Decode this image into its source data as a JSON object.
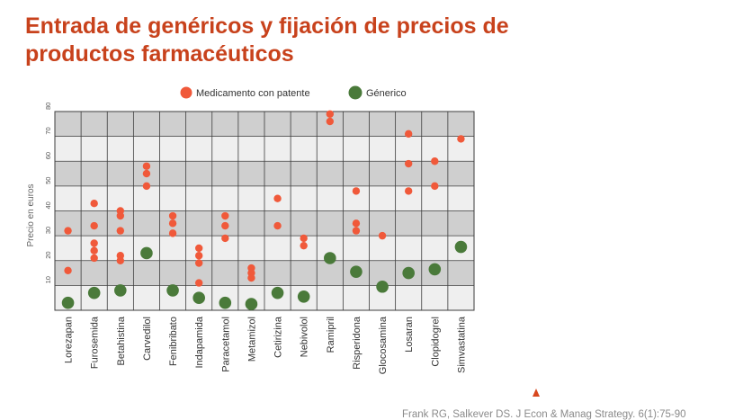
{
  "slide": {
    "title_line1": "Entrada de genéricos y fijación de precios de",
    "title_line2": "productos farmacéuticos",
    "source": "Frank RG, Salkever DS. J Econ & Manag Strategy. 6(1):75-90"
  },
  "colors": {
    "title": "#c8421c",
    "patent": "#f0593a",
    "generic": "#4a7a3a",
    "band_dark": "#cfcfcf",
    "band_light": "#efefef",
    "grid": "#3d3d3d",
    "marker": "#d8471e"
  },
  "chart_data": {
    "type": "scatter",
    "title": "",
    "xlabel": "",
    "ylabel": "Precio en euros",
    "ylim": [
      0,
      80
    ],
    "yticks": [
      10,
      20,
      30,
      40,
      50,
      60,
      70,
      80
    ],
    "legend_position": "top-center",
    "grid": true,
    "categories": [
      "Lorezapan",
      "Furosemida",
      "Betahistina",
      "Carvedilol",
      "Fenibribato",
      "Indapamida",
      "Paracetamol",
      "Metamizol",
      "Cetirizina",
      "Nebivolol",
      "Ramipril",
      "Risperidona",
      "Glocosamina",
      "Losaran",
      "Clopidogrel",
      "Simvastatina"
    ],
    "series": [
      {
        "name": "Medicamento con patente",
        "points": [
          [
            0,
            32
          ],
          [
            0,
            16
          ],
          [
            1,
            43
          ],
          [
            1,
            34
          ],
          [
            1,
            27
          ],
          [
            1,
            24
          ],
          [
            1,
            21
          ],
          [
            2,
            40
          ],
          [
            2,
            38
          ],
          [
            2,
            32
          ],
          [
            2,
            22
          ],
          [
            2,
            20
          ],
          [
            3,
            58
          ],
          [
            3,
            55
          ],
          [
            3,
            50
          ],
          [
            4,
            38
          ],
          [
            4,
            35
          ],
          [
            4,
            31
          ],
          [
            5,
            25
          ],
          [
            5,
            22
          ],
          [
            5,
            19
          ],
          [
            5,
            11
          ],
          [
            6,
            38
          ],
          [
            6,
            34
          ],
          [
            6,
            29
          ],
          [
            7,
            17
          ],
          [
            7,
            15
          ],
          [
            7,
            13
          ],
          [
            8,
            45
          ],
          [
            8,
            34
          ],
          [
            9,
            29
          ],
          [
            9,
            26
          ],
          [
            10,
            79
          ],
          [
            10,
            76
          ],
          [
            11,
            48
          ],
          [
            11,
            35
          ],
          [
            11,
            32
          ],
          [
            12,
            30
          ],
          [
            13,
            71
          ],
          [
            13,
            59
          ],
          [
            13,
            48
          ],
          [
            14,
            60
          ],
          [
            14,
            50
          ],
          [
            15,
            69
          ]
        ]
      },
      {
        "name": "Génerico",
        "points": [
          [
            0,
            3
          ],
          [
            1,
            7
          ],
          [
            2,
            8
          ],
          [
            3,
            23
          ],
          [
            4,
            8
          ],
          [
            5,
            5
          ],
          [
            6,
            3
          ],
          [
            7,
            2.5
          ],
          [
            8,
            7
          ],
          [
            9,
            5.5
          ],
          [
            10,
            21
          ],
          [
            11,
            15.5
          ],
          [
            12,
            9.5
          ],
          [
            13,
            15
          ],
          [
            14,
            16.5
          ],
          [
            15,
            25.5
          ]
        ]
      }
    ]
  }
}
